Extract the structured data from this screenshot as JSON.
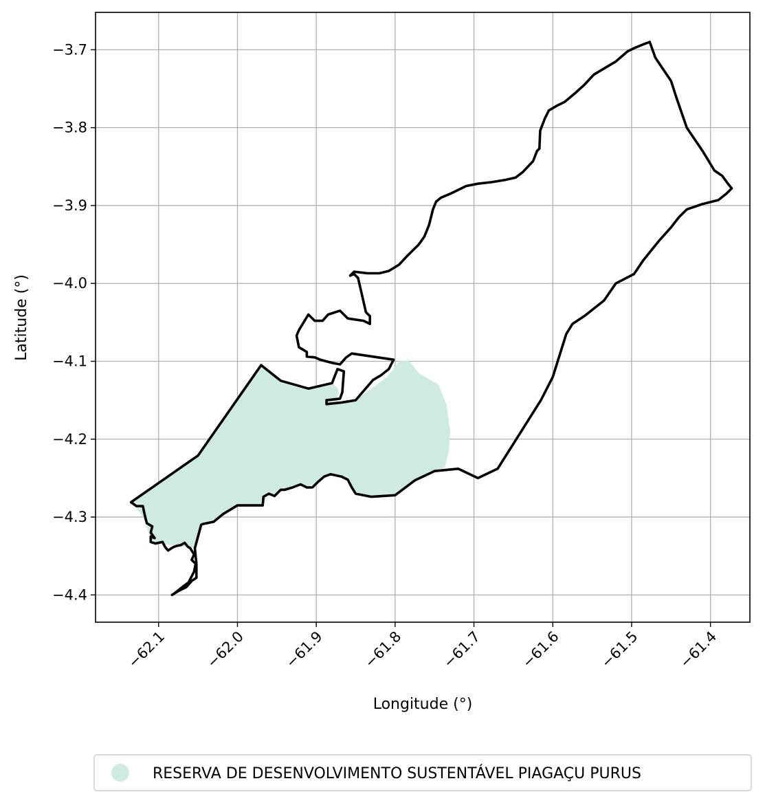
{
  "chart_data": {
    "type": "map",
    "xlabel": "Longitude (°)",
    "ylabel": "Latitude (°)",
    "xlim": [
      -62.18,
      -61.35
    ],
    "ylim": [
      -4.435,
      -3.652
    ],
    "x_ticks": [
      -62.1,
      -62.0,
      -61.9,
      -61.8,
      -61.7,
      -61.6,
      -61.5,
      -61.4
    ],
    "y_ticks": [
      -3.7,
      -3.8,
      -3.9,
      -4.0,
      -4.1,
      -4.2,
      -4.3,
      -4.4
    ],
    "x_tick_labels": [
      "−62.1",
      "−62.0",
      "−61.9",
      "−61.8",
      "−61.7",
      "−61.6",
      "−61.5",
      "−61.4"
    ],
    "y_tick_labels": [
      "−3.7",
      "−3.8",
      "−3.9",
      "−4.0",
      "−4.1",
      "−4.2",
      "−4.3",
      "−4.4"
    ],
    "grid": true,
    "legend_position": "bottom",
    "legend": [
      {
        "label": "RESERVA DE DESENVOLVIMENTO SUSTENTÁVEL PIAGAÇU PURUS",
        "color": "#cfeade"
      }
    ],
    "reserve_fill_color": "#cfeade",
    "boundary_color": "#000000",
    "reserve_area": [
      [
        -62.135,
        -4.281
      ],
      [
        -62.05,
        -4.221
      ],
      [
        -61.97,
        -4.105
      ],
      [
        -61.945,
        -4.125
      ],
      [
        -61.91,
        -4.135
      ],
      [
        -61.88,
        -4.128
      ],
      [
        -61.872,
        -4.135
      ],
      [
        -61.873,
        -4.15
      ],
      [
        -61.87,
        -4.155
      ],
      [
        -61.85,
        -4.15
      ],
      [
        -61.81,
        -4.12
      ],
      [
        -61.795,
        -4.1
      ],
      [
        -61.783,
        -4.099
      ],
      [
        -61.77,
        -4.115
      ],
      [
        -61.745,
        -4.13
      ],
      [
        -61.735,
        -4.155
      ],
      [
        -61.73,
        -4.19
      ],
      [
        -61.732,
        -4.215
      ],
      [
        -61.737,
        -4.237
      ],
      [
        -61.755,
        -4.241
      ],
      [
        -61.775,
        -4.253
      ],
      [
        -61.8,
        -4.272
      ],
      [
        -61.83,
        -4.274
      ],
      [
        -61.85,
        -4.27
      ],
      [
        -61.857,
        -4.26
      ],
      [
        -61.862,
        -4.25
      ],
      [
        -61.883,
        -4.245
      ],
      [
        -61.9,
        -4.255
      ],
      [
        -61.91,
        -4.262
      ],
      [
        -61.923,
        -4.258
      ],
      [
        -61.93,
        -4.262
      ],
      [
        -61.945,
        -4.267
      ],
      [
        -61.953,
        -4.274
      ],
      [
        -61.962,
        -4.272
      ],
      [
        -61.968,
        -4.287
      ],
      [
        -62.0,
        -4.287
      ],
      [
        -62.018,
        -4.299
      ],
      [
        -62.03,
        -4.306
      ],
      [
        -62.046,
        -4.309
      ],
      [
        -62.054,
        -4.34
      ],
      [
        -62.07,
        -4.338
      ],
      [
        -62.1,
        -4.334
      ],
      [
        -62.11,
        -4.33
      ],
      [
        -62.115,
        -4.312
      ],
      [
        -62.12,
        -4.3
      ],
      [
        -62.128,
        -4.288
      ]
    ],
    "boundary": [
      [
        -62.135,
        -4.281
      ],
      [
        -62.05,
        -4.221
      ],
      [
        -61.97,
        -4.105
      ],
      [
        -61.945,
        -4.125
      ],
      [
        -61.91,
        -4.135
      ],
      [
        -61.88,
        -4.128
      ],
      [
        -61.873,
        -4.11
      ],
      [
        -61.865,
        -4.113
      ],
      [
        -61.867,
        -4.14
      ],
      [
        -61.87,
        -4.148
      ],
      [
        -61.887,
        -4.15
      ],
      [
        -61.887,
        -4.155
      ],
      [
        -61.868,
        -4.153
      ],
      [
        -61.85,
        -4.15
      ],
      [
        -61.828,
        -4.124
      ],
      [
        -61.818,
        -4.118
      ],
      [
        -61.808,
        -4.11
      ],
      [
        -61.802,
        -4.098
      ],
      [
        -61.855,
        -4.09
      ],
      [
        -61.862,
        -4.095
      ],
      [
        -61.87,
        -4.104
      ],
      [
        -61.88,
        -4.102
      ],
      [
        -61.895,
        -4.098
      ],
      [
        -61.902,
        -4.095
      ],
      [
        -61.912,
        -4.094
      ],
      [
        -61.912,
        -4.088
      ],
      [
        -61.922,
        -4.082
      ],
      [
        -61.925,
        -4.067
      ],
      [
        -61.922,
        -4.06
      ],
      [
        -61.91,
        -4.04
      ],
      [
        -61.902,
        -4.048
      ],
      [
        -61.892,
        -4.048
      ],
      [
        -61.885,
        -4.04
      ],
      [
        -61.87,
        -4.035
      ],
      [
        -61.86,
        -4.045
      ],
      [
        -61.84,
        -4.048
      ],
      [
        -61.832,
        -4.052
      ],
      [
        -61.832,
        -4.042
      ],
      [
        -61.837,
        -4.037
      ],
      [
        -61.842,
        -4.015
      ],
      [
        -61.847,
        -3.993
      ],
      [
        -61.852,
        -3.988
      ],
      [
        -61.857,
        -3.99
      ],
      [
        -61.852,
        -3.985
      ],
      [
        -61.835,
        -3.987
      ],
      [
        -61.82,
        -3.987
      ],
      [
        -61.808,
        -3.984
      ],
      [
        -61.795,
        -3.976
      ],
      [
        -61.785,
        -3.965
      ],
      [
        -61.77,
        -3.95
      ],
      [
        -61.763,
        -3.94
      ],
      [
        -61.757,
        -3.925
      ],
      [
        -61.752,
        -3.905
      ],
      [
        -61.748,
        -3.895
      ],
      [
        -61.742,
        -3.89
      ],
      [
        -61.728,
        -3.884
      ],
      [
        -61.71,
        -3.875
      ],
      [
        -61.695,
        -3.872
      ],
      [
        -61.678,
        -3.87
      ],
      [
        -61.66,
        -3.867
      ],
      [
        -61.647,
        -3.864
      ],
      [
        -61.638,
        -3.857
      ],
      [
        -61.625,
        -3.843
      ],
      [
        -61.62,
        -3.83
      ],
      [
        -61.617,
        -3.827
      ],
      [
        -61.616,
        -3.804
      ],
      [
        -61.61,
        -3.788
      ],
      [
        -61.605,
        -3.778
      ],
      [
        -61.595,
        -3.772
      ],
      [
        -61.585,
        -3.767
      ],
      [
        -61.572,
        -3.756
      ],
      [
        -61.56,
        -3.745
      ],
      [
        -61.548,
        -3.732
      ],
      [
        -61.52,
        -3.715
      ],
      [
        -61.505,
        -3.702
      ],
      [
        -61.497,
        -3.698
      ],
      [
        -61.485,
        -3.693
      ],
      [
        -61.477,
        -3.69
      ],
      [
        -61.47,
        -3.71
      ],
      [
        -61.46,
        -3.725
      ],
      [
        -61.45,
        -3.74
      ],
      [
        -61.443,
        -3.762
      ],
      [
        -61.43,
        -3.8
      ],
      [
        -61.41,
        -3.83
      ],
      [
        -61.395,
        -3.855
      ],
      [
        -61.385,
        -3.862
      ],
      [
        -61.377,
        -3.873
      ],
      [
        -61.373,
        -3.878
      ],
      [
        -61.38,
        -3.885
      ],
      [
        -61.39,
        -3.893
      ],
      [
        -61.41,
        -3.898
      ],
      [
        -61.43,
        -3.905
      ],
      [
        -61.44,
        -3.915
      ],
      [
        -61.45,
        -3.928
      ],
      [
        -61.465,
        -3.945
      ],
      [
        -61.485,
        -3.97
      ],
      [
        -61.497,
        -3.988
      ],
      [
        -61.52,
        -4.0
      ],
      [
        -61.535,
        -4.022
      ],
      [
        -61.56,
        -4.042
      ],
      [
        -61.575,
        -4.052
      ],
      [
        -61.583,
        -4.065
      ],
      [
        -61.6,
        -4.12
      ],
      [
        -61.615,
        -4.15
      ],
      [
        -61.67,
        -4.238
      ],
      [
        -61.695,
        -4.25
      ],
      [
        -61.72,
        -4.238
      ],
      [
        -61.75,
        -4.241
      ],
      [
        -61.775,
        -4.253
      ],
      [
        -61.8,
        -4.272
      ],
      [
        -61.83,
        -4.274
      ],
      [
        -61.85,
        -4.27
      ],
      [
        -61.855,
        -4.262
      ],
      [
        -61.86,
        -4.252
      ],
      [
        -61.868,
        -4.248
      ],
      [
        -61.882,
        -4.245
      ],
      [
        -61.89,
        -4.248
      ],
      [
        -61.898,
        -4.255
      ],
      [
        -61.905,
        -4.262
      ],
      [
        -61.912,
        -4.262
      ],
      [
        -61.92,
        -4.258
      ],
      [
        -61.93,
        -4.262
      ],
      [
        -61.94,
        -4.265
      ],
      [
        -61.945,
        -4.265
      ],
      [
        -61.953,
        -4.273
      ],
      [
        -61.96,
        -4.27
      ],
      [
        -61.967,
        -4.274
      ],
      [
        -61.968,
        -4.285
      ],
      [
        -62.0,
        -4.285
      ],
      [
        -62.018,
        -4.296
      ],
      [
        -62.03,
        -4.306
      ],
      [
        -62.044,
        -4.309
      ],
      [
        -62.046,
        -4.31
      ],
      [
        -62.054,
        -4.34
      ],
      [
        -62.052,
        -4.36
      ],
      [
        -62.052,
        -4.378
      ],
      [
        -62.058,
        -4.382
      ],
      [
        -62.065,
        -4.39
      ],
      [
        -62.075,
        -4.395
      ],
      [
        -62.083,
        -4.4
      ],
      [
        -62.08,
        -4.398
      ],
      [
        -62.07,
        -4.39
      ],
      [
        -62.062,
        -4.384
      ],
      [
        -62.055,
        -4.37
      ],
      [
        -62.053,
        -4.36
      ],
      [
        -62.058,
        -4.355
      ],
      [
        -62.055,
        -4.348
      ],
      [
        -62.058,
        -4.343
      ],
      [
        -62.06,
        -4.34
      ],
      [
        -62.063,
        -4.338
      ],
      [
        -62.067,
        -4.333
      ],
      [
        -62.072,
        -4.336
      ],
      [
        -62.077,
        -4.337
      ],
      [
        -62.082,
        -4.339
      ],
      [
        -62.088,
        -4.343
      ],
      [
        -62.092,
        -4.338
      ],
      [
        -62.095,
        -4.332
      ],
      [
        -62.1,
        -4.333
      ],
      [
        -62.104,
        -4.334
      ],
      [
        -62.11,
        -4.332
      ],
      [
        -62.11,
        -4.325
      ],
      [
        -62.105,
        -4.327
      ],
      [
        -62.11,
        -4.32
      ],
      [
        -62.108,
        -4.312
      ],
      [
        -62.115,
        -4.308
      ],
      [
        -62.117,
        -4.3
      ],
      [
        -62.12,
        -4.286
      ],
      [
        -62.128,
        -4.286
      ],
      [
        -62.135,
        -4.281
      ]
    ]
  }
}
